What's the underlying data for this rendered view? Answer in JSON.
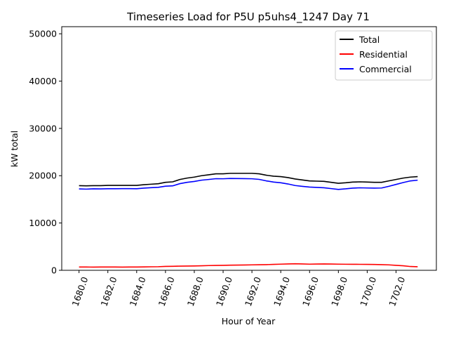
{
  "chart_data": {
    "type": "line",
    "title": "Timeseries Load for P5U p5uhs4_1247  Day 71",
    "xlabel": "Hour of Year",
    "ylabel": "kW total",
    "xlim": [
      1678.8,
      1704.8
    ],
    "ylim": [
      0,
      51500
    ],
    "x_ticks": [
      1680,
      1682,
      1684,
      1686,
      1688,
      1690,
      1692,
      1694,
      1696,
      1698,
      1700,
      1702
    ],
    "x_tick_labels": [
      "1680.0",
      "1682.0",
      "1684.0",
      "1686.0",
      "1688.0",
      "1690.0",
      "1692.0",
      "1694.0",
      "1696.0",
      "1698.0",
      "1700.0",
      "1702.0"
    ],
    "y_ticks": [
      0,
      10000,
      20000,
      30000,
      40000,
      50000
    ],
    "y_tick_labels": [
      "0",
      "10000",
      "20000",
      "30000",
      "40000",
      "50000"
    ],
    "legend_position": "top-right",
    "grid": false,
    "x": [
      1680.0,
      1680.5,
      1681.0,
      1681.5,
      1682.0,
      1682.5,
      1683.0,
      1683.5,
      1684.0,
      1684.5,
      1685.0,
      1685.5,
      1686.0,
      1686.5,
      1687.0,
      1687.5,
      1688.0,
      1688.5,
      1689.0,
      1689.5,
      1690.0,
      1690.5,
      1691.0,
      1691.5,
      1692.0,
      1692.5,
      1693.0,
      1693.5,
      1694.0,
      1694.5,
      1695.0,
      1695.5,
      1696.0,
      1696.5,
      1697.0,
      1697.5,
      1698.0,
      1698.5,
      1699.0,
      1699.5,
      1700.0,
      1700.5,
      1701.0,
      1701.5,
      1702.0,
      1702.5,
      1703.0,
      1703.5
    ],
    "series": [
      {
        "name": "Total",
        "color": "#000000",
        "values": [
          17900,
          17850,
          17900,
          17900,
          17950,
          17950,
          17950,
          17950,
          17950,
          18100,
          18200,
          18300,
          18600,
          18700,
          19200,
          19500,
          19700,
          20000,
          20200,
          20400,
          20400,
          20500,
          20500,
          20500,
          20500,
          20400,
          20100,
          19900,
          19800,
          19600,
          19300,
          19100,
          18900,
          18850,
          18800,
          18600,
          18400,
          18500,
          18650,
          18700,
          18650,
          18600,
          18600,
          18900,
          19200,
          19500,
          19700,
          19800
        ]
      },
      {
        "name": "Residential",
        "color": "#ff0000",
        "values": [
          700,
          690,
          680,
          690,
          700,
          700,
          680,
          690,
          700,
          720,
          740,
          760,
          820,
          850,
          880,
          900,
          920,
          950,
          1000,
          1030,
          1050,
          1080,
          1100,
          1120,
          1150,
          1180,
          1200,
          1250,
          1300,
          1350,
          1380,
          1350,
          1300,
          1320,
          1350,
          1330,
          1300,
          1280,
          1270,
          1260,
          1250,
          1230,
          1200,
          1150,
          1050,
          950,
          800,
          750
        ]
      },
      {
        "name": "Commercial",
        "color": "#0000ff",
        "values": [
          17200,
          17160,
          17220,
          17210,
          17250,
          17250,
          17270,
          17260,
          17250,
          17380,
          17460,
          17540,
          17780,
          17850,
          18320,
          18600,
          18780,
          19050,
          19200,
          19370,
          19350,
          19420,
          19400,
          19380,
          19350,
          19220,
          18900,
          18650,
          18500,
          18250,
          17920,
          17750,
          17600,
          17530,
          17450,
          17270,
          17100,
          17220,
          17380,
          17440,
          17400,
          17370,
          17400,
          17750,
          18150,
          18550,
          18900,
          19050
        ]
      }
    ]
  }
}
